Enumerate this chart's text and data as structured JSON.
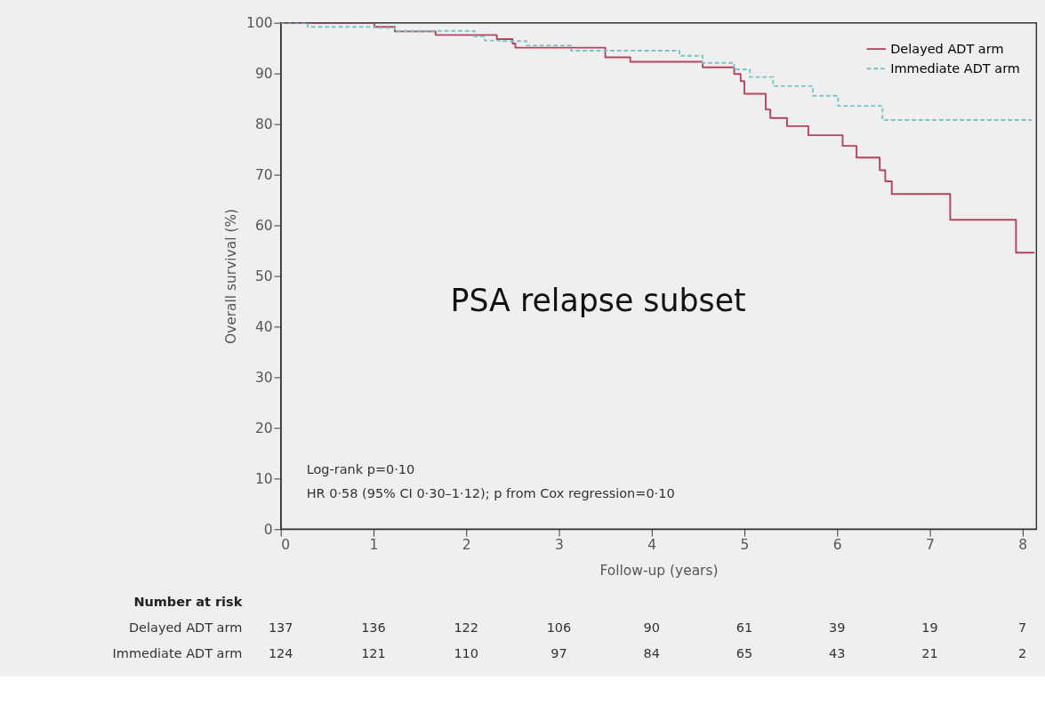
{
  "chart_data": {
    "type": "step",
    "xlabel": "Follow-up (years)",
    "ylabel": "Overall survival (%)",
    "xlim": [
      0,
      8.15
    ],
    "xticks": [
      0,
      1,
      2,
      3,
      4,
      5,
      6,
      7,
      8
    ],
    "ylim": [
      0,
      100
    ],
    "yticks": [
      0,
      10,
      20,
      30,
      40,
      50,
      60,
      70,
      80,
      90,
      100
    ],
    "grid": false,
    "legend": "top right",
    "marker": "none",
    "series": [
      {
        "name": "Delayed ADT arm",
        "color": "#b5455f",
        "line_style": "solid",
        "x": [
          0,
          1.01,
          1.23,
          1.67,
          2.33,
          2.5,
          2.53,
          3.5,
          3.77,
          4.55,
          4.89,
          4.96,
          5.0,
          5.23,
          5.28,
          5.46,
          5.69,
          6.06,
          6.21,
          6.46,
          6.52,
          6.59,
          7.22,
          7.93,
          8.13
        ],
        "values": [
          100,
          99.2,
          98.3,
          97.6,
          96.8,
          95.9,
          95.1,
          93.2,
          92.3,
          91.2,
          89.9,
          88.5,
          86.0,
          82.9,
          81.2,
          79.6,
          77.8,
          75.7,
          73.4,
          70.9,
          68.7,
          66.2,
          61.1,
          54.6,
          54.6
        ]
      },
      {
        "name": "Immediate ADT arm",
        "color": "#7cc4c8",
        "line_style": "dashed",
        "x": [
          0,
          0.29,
          1.01,
          1.23,
          2.09,
          2.2,
          2.4,
          2.65,
          3.13,
          3.5,
          4.3,
          4.55,
          4.89,
          5.06,
          5.31,
          5.74,
          6.01,
          6.49,
          8.1
        ],
        "values": [
          100,
          99.2,
          99.0,
          98.4,
          97.3,
          96.5,
          96.4,
          95.5,
          94.5,
          94.5,
          93.5,
          92.1,
          90.8,
          89.3,
          87.5,
          85.6,
          83.6,
          80.8,
          80.8
        ]
      }
    ],
    "annotations": [
      "PSA relapse subset",
      "Log-rank p=0·10",
      "HR 0·58 (95% CI 0·30–1·12); p from Cox regression=0·10",
      "Number at risk",
      "Delayed ADT arm",
      "137",
      "136",
      "122",
      "106",
      "90",
      "61",
      "39",
      "19",
      "7",
      "Immediate ADT arm",
      "124",
      "121",
      "110",
      "97",
      "84",
      "65",
      "43",
      "21",
      "2"
    ]
  }
}
